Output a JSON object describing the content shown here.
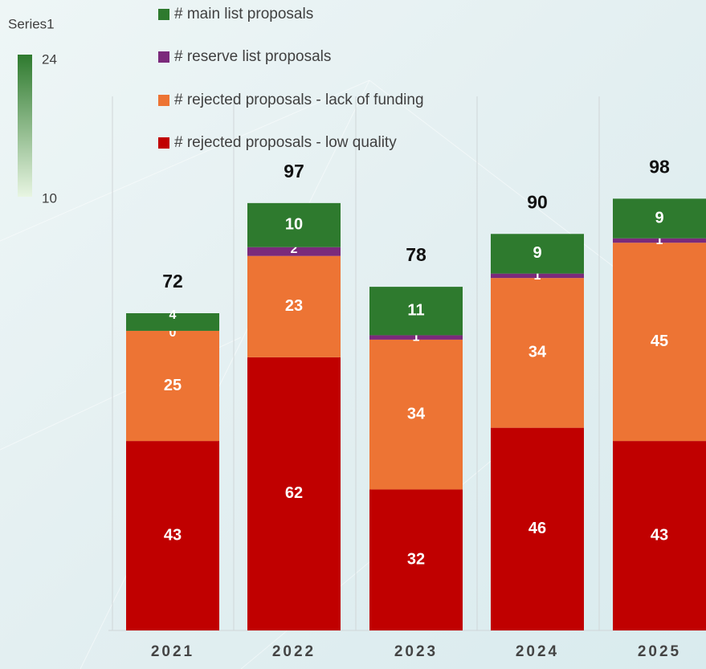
{
  "chart_data": {
    "type": "stacked_bar",
    "categories": [
      "2021",
      "2022",
      "2023",
      "2024",
      "2025"
    ],
    "series": [
      {
        "name": "# main list proposals",
        "color": "#2e7a2e",
        "values": [
          4,
          10,
          11,
          9,
          9
        ]
      },
      {
        "name": "# reserve list proposals",
        "color": "#7b2a7b",
        "values": [
          0,
          2,
          1,
          1,
          1
        ]
      },
      {
        "name": "# rejected proposals - lack of funding",
        "color": "#ed7434",
        "values": [
          25,
          23,
          34,
          34,
          45
        ]
      },
      {
        "name": "# rejected proposals - low quality",
        "color": "#c00000",
        "values": [
          43,
          62,
          32,
          46,
          43
        ]
      }
    ],
    "totals": [
      72,
      97,
      78,
      90,
      98
    ],
    "color_scale": {
      "title": "Series1",
      "max": 24,
      "min": 10
    }
  }
}
